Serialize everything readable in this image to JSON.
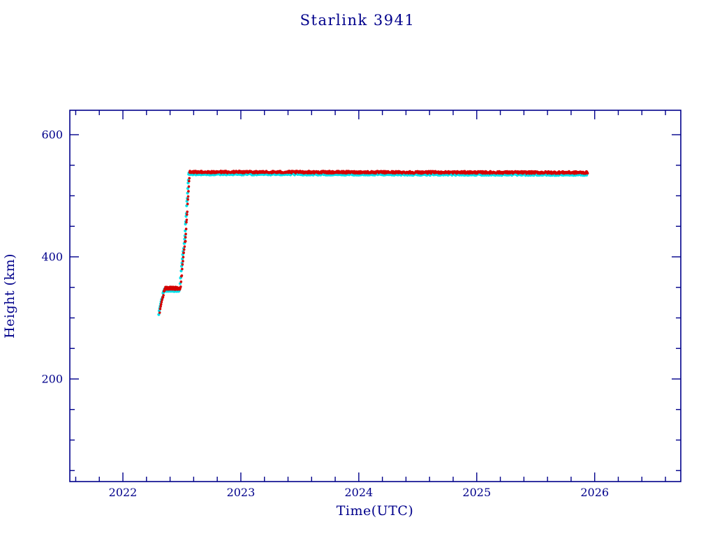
{
  "page": {
    "background": "#ffffff"
  },
  "chart_data": {
    "type": "scatter",
    "title": "Starlink 3941",
    "xlabel": "Time(UTC)",
    "ylabel": "Height (km)",
    "xlim": [
      2021.55,
      2026.73
    ],
    "ylim": [
      32,
      640
    ],
    "xticks": [
      2022,
      2023,
      2024,
      2025,
      2026
    ],
    "yticks": [
      200,
      400,
      600
    ],
    "x_minor_step": 0.2,
    "y_minor_step": 50,
    "grid": false,
    "legend": "none",
    "axis_color": "#00008b",
    "text_color": "#00008b",
    "series": [
      {
        "name": "reference-track",
        "color": "#00e0ea",
        "marker": "circle",
        "marker_radius_px": 2.1,
        "x_offset": -0.008,
        "y_offset_km": -3
      },
      {
        "name": "observed-track",
        "color": "#d40000",
        "marker": "circle",
        "marker_radius_px": 1.8,
        "x_offset": 0,
        "y_offset_km": 0
      }
    ],
    "profile_segments": [
      {
        "x0": 2022.312,
        "y0": 310,
        "x1": 2022.352,
        "y1": 346,
        "step": 0.004,
        "jitter_km": 2
      },
      {
        "x0": 2022.352,
        "y0": 348,
        "x1": 2022.488,
        "y1": 349,
        "step": 0.003,
        "jitter_km": 2.5
      },
      {
        "x0": 2022.49,
        "y0": 352,
        "x1": 2022.515,
        "y1": 405,
        "step": 0.003,
        "jitter_km": 3
      },
      {
        "x0": 2022.515,
        "y0": 408,
        "x1": 2022.531,
        "y1": 428,
        "step": 0.004,
        "jitter_km": 3
      },
      {
        "x0": 2022.531,
        "y0": 432,
        "x1": 2022.566,
        "y1": 536,
        "step": 0.0025,
        "jitter_km": 3
      },
      {
        "x0": 2022.568,
        "y0": 539,
        "x1": 2025.94,
        "y1": 538,
        "step": 0.0035,
        "jitter_km": 1.8
      }
    ],
    "annotations": {
      "initial_height_km": 310,
      "parking_orbit_km": 349,
      "operational_height_km": 538,
      "raise_start_year": 2022.49,
      "raise_end_year": 2022.57,
      "data_end_year": 2025.94
    }
  }
}
